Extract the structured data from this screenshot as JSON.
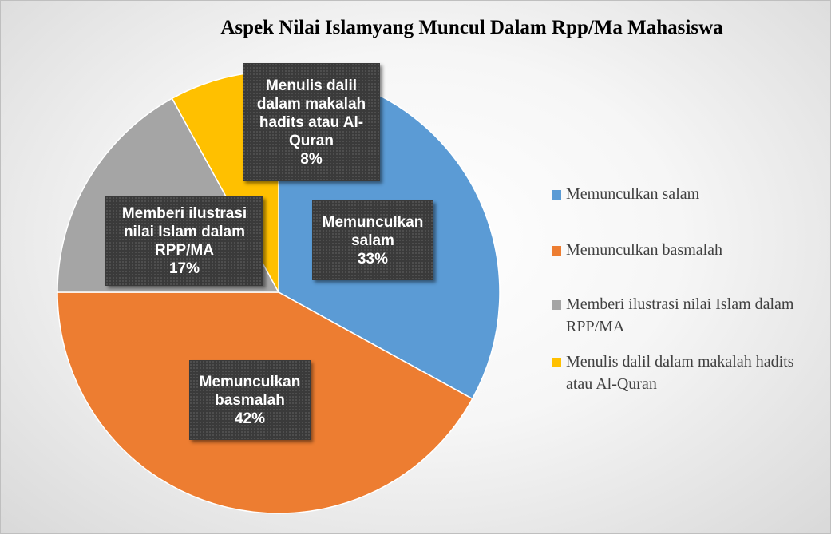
{
  "chart_data": {
    "type": "pie",
    "title": "Aspek Nilai Islamyang Muncul Dalam Rpp/Ma Mahasiswa",
    "categories": [
      "Memunculkan salam",
      "Memunculkan basmalah",
      "Memberi ilustrasi nilai Islam dalam RPP/MA",
      "Menulis dalil dalam makalah hadits atau Al-Quran"
    ],
    "values": [
      33,
      42,
      17,
      8
    ],
    "value_labels": [
      "33%",
      "42%",
      "17%",
      "8%"
    ],
    "colors": [
      "#5b9bd5",
      "#ed7d31",
      "#a5a5a5",
      "#ffc000"
    ],
    "legend": "right"
  }
}
